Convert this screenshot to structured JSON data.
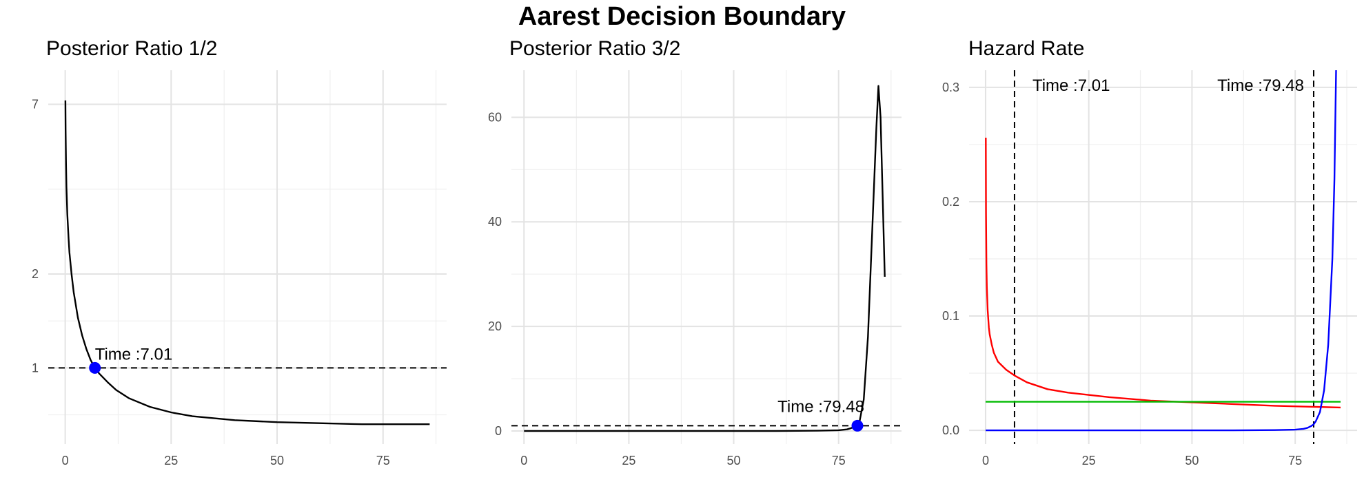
{
  "title": "Aarest Decision Boundary",
  "chart_data": [
    {
      "type": "line",
      "title": "Posterior Ratio 1/2",
      "xlabel": "",
      "ylabel": "",
      "y_scale": "log",
      "xlim": [
        -4,
        90
      ],
      "ylim": [
        0.57,
        9.0
      ],
      "x_ticks": [
        0,
        25,
        50,
        75
      ],
      "y_ticks": [
        1,
        2,
        7
      ],
      "grid": true,
      "legend": "none",
      "series": [
        {
          "color": "#000000",
          "x": [
            0.05,
            0.1,
            0.2,
            0.3,
            0.5,
            0.8,
            1,
            1.5,
            2,
            3,
            4,
            5,
            6,
            7.01,
            8,
            10,
            12,
            15,
            20,
            25,
            30,
            35,
            40,
            50,
            60,
            70,
            80,
            86
          ],
          "y": [
            7.2,
            5.8,
            4.5,
            3.8,
            3.1,
            2.6,
            2.35,
            2.0,
            1.75,
            1.45,
            1.27,
            1.15,
            1.06,
            1.0,
            0.96,
            0.9,
            0.85,
            0.8,
            0.75,
            0.72,
            0.7,
            0.69,
            0.68,
            0.67,
            0.665,
            0.66,
            0.66,
            0.66
          ]
        }
      ],
      "hline": 1,
      "point": {
        "x": 7.01,
        "y": 1,
        "color": "#0000ff"
      },
      "annotations": [
        {
          "text": "Time :7.01",
          "x": 7.01,
          "y": 1
        }
      ]
    },
    {
      "type": "line",
      "title": "Posterior Ratio 3/2",
      "xlabel": "",
      "ylabel": "",
      "xlim": [
        -3,
        90
      ],
      "ylim": [
        -2.5,
        69
      ],
      "x_ticks": [
        0,
        25,
        50,
        75
      ],
      "y_ticks": [
        0,
        20,
        40,
        60
      ],
      "grid": true,
      "legend": "none",
      "series": [
        {
          "color": "#000000",
          "x": [
            0,
            20,
            40,
            60,
            70,
            75,
            77,
            78,
            79,
            79.48,
            80,
            81,
            82,
            83,
            84,
            84.5,
            85,
            85.5,
            86
          ],
          "y": [
            0,
            0,
            0,
            0,
            0.05,
            0.15,
            0.3,
            0.55,
            0.85,
            1.0,
            1.8,
            6,
            18,
            38,
            58,
            66,
            60,
            45,
            29.5
          ]
        }
      ],
      "hline": 1,
      "point": {
        "x": 79.48,
        "y": 1,
        "color": "#0000ff"
      },
      "annotations": [
        {
          "text": "Time :79.48",
          "x": 79.48,
          "y": 1
        }
      ]
    },
    {
      "type": "line",
      "title": "Hazard Rate",
      "xlabel": "",
      "ylabel": "",
      "xlim": [
        -4,
        90
      ],
      "ylim": [
        -0.012,
        0.315
      ],
      "x_ticks": [
        0,
        25,
        50,
        75
      ],
      "y_ticks": [
        0.0,
        0.1,
        0.2,
        0.3
      ],
      "y_tick_labels": [
        "0.0",
        "0.1",
        "0.2",
        "0.3"
      ],
      "grid": true,
      "legend": "none",
      "vlines": [
        7.01,
        79.48
      ],
      "series": [
        {
          "color": "#ff0000",
          "x": [
            0.05,
            0.1,
            0.2,
            0.3,
            0.5,
            0.8,
            1,
            1.5,
            2,
            3,
            5,
            7.01,
            10,
            15,
            20,
            30,
            40,
            50,
            60,
            70,
            80,
            86
          ],
          "y": [
            0.256,
            0.19,
            0.145,
            0.125,
            0.105,
            0.09,
            0.084,
            0.075,
            0.068,
            0.06,
            0.053,
            0.048,
            0.042,
            0.036,
            0.033,
            0.029,
            0.026,
            0.0245,
            0.023,
            0.0215,
            0.0205,
            0.02
          ]
        },
        {
          "color": "#00bb00",
          "x": [
            0,
            86
          ],
          "y": [
            0.025,
            0.025
          ]
        },
        {
          "color": "#0000ff",
          "x": [
            0,
            20,
            40,
            60,
            70,
            75,
            77,
            78,
            79,
            79.48,
            80,
            81,
            82,
            83,
            84,
            84.5,
            84.9
          ],
          "y": [
            0,
            0,
            0,
            0,
            0.0002,
            0.0006,
            0.0013,
            0.0022,
            0.004,
            0.0053,
            0.008,
            0.016,
            0.035,
            0.075,
            0.15,
            0.22,
            0.315
          ]
        }
      ],
      "annotations": [
        {
          "text": "Time :7.01",
          "x": 7.01
        },
        {
          "text": "Time :79.48",
          "x": 79.48
        }
      ]
    }
  ]
}
